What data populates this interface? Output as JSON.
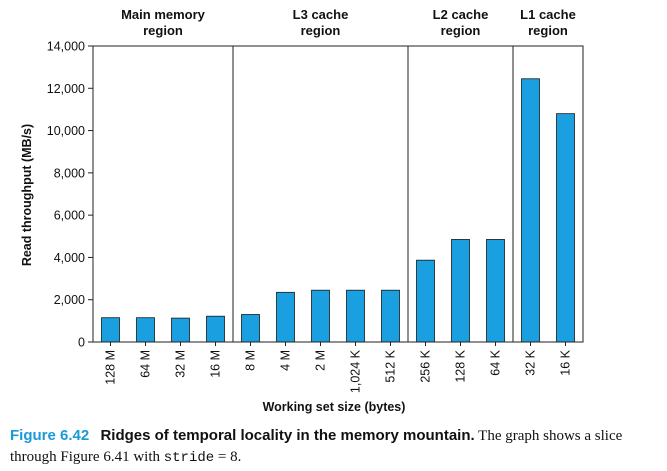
{
  "chart_data": {
    "type": "bar",
    "title": "",
    "xlabel": "Working set size (bytes)",
    "ylabel": "Read throughput (MB/s)",
    "ylim": [
      0,
      14000
    ],
    "yticks": [
      0,
      2000,
      4000,
      6000,
      8000,
      10000,
      12000,
      14000
    ],
    "ytick_labels": [
      "0",
      "2,000",
      "4,000",
      "6,000",
      "8,000",
      "10,000",
      "12,000",
      "14,000"
    ],
    "categories": [
      "128 M",
      "64 M",
      "32 M",
      "16 M",
      "8 M",
      "4 M",
      "2 M",
      "1,024 K",
      "512 K",
      "256 K",
      "128 K",
      "64 K",
      "32 K",
      "16 K"
    ],
    "values": [
      1150,
      1150,
      1130,
      1220,
      1300,
      2350,
      2450,
      2450,
      2450,
      3870,
      4850,
      4850,
      12450,
      10800
    ],
    "bar_color": "#1a9fe0",
    "grid": false,
    "regions": [
      {
        "line1": "Main memory",
        "line2": "region",
        "start": 0,
        "end": 4
      },
      {
        "line1": "L3 cache",
        "line2": "region",
        "start": 4,
        "end": 9
      },
      {
        "line1": "L2 cache",
        "line2": "region",
        "start": 9,
        "end": 12
      },
      {
        "line1": "L1 cache",
        "line2": "region",
        "start": 12,
        "end": 14
      }
    ]
  },
  "caption": {
    "label": "Figure 6.42",
    "title": "Ridges of temporal locality in the memory mountain.",
    "text_before": " The graph shows a slice through Figure 6.41 with ",
    "code": "stride",
    "text_after": " = 8."
  }
}
